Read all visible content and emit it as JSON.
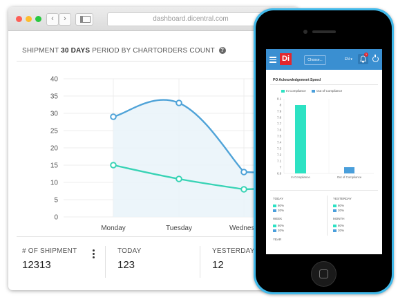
{
  "browser": {
    "url": "dashboard.dicentral.com"
  },
  "card": {
    "title_prefix": "SHIPMENT ",
    "title_bold": "30 DAYS",
    "title_suffix": " PERIOD BY CHARTORDERS COUNT",
    "help_glyph": "?"
  },
  "chart_data": {
    "type": "line",
    "categories": [
      "Monday",
      "Tuesday",
      "Wednesday"
    ],
    "visible_categories": [
      "Monday",
      "Tuesday",
      "Wednesd"
    ],
    "series": [
      {
        "values": [
          29,
          33,
          13
        ],
        "color": "#4fa3d8",
        "fill": true
      },
      {
        "values": [
          15,
          11,
          8
        ],
        "color": "#38d3b5",
        "fill": false
      }
    ],
    "yticks": [
      0,
      5,
      10,
      15,
      20,
      25,
      30,
      35,
      40
    ],
    "ylim": [
      0,
      40
    ],
    "grid": true
  },
  "stats": [
    {
      "label": "# OF SHIPMENT",
      "value": "12313"
    },
    {
      "label": "TODAY",
      "value": "123"
    },
    {
      "label": "YESTERDAY",
      "value": "12"
    }
  ],
  "phone": {
    "logo": "Di",
    "choose_label": "Choose...",
    "lang": "EN ▾",
    "bell_count": "1",
    "panel_title": "PO Acknowledgement Speed",
    "legend": [
      {
        "name": "In Compliance",
        "color": "#2de2c3"
      },
      {
        "name": "Out of Compliance",
        "color": "#4a9fdb"
      }
    ],
    "mini_chart": {
      "type": "bar",
      "categories": [
        "In Compliance",
        "Out of Compliance"
      ],
      "values": [
        8.0,
        7.0
      ],
      "colors": [
        "#2de2c3",
        "#4a9fdb"
      ],
      "yticks": [
        "8.1",
        "8",
        "7.9",
        "7.8",
        "7.7",
        "7.6",
        "7.5",
        "7.4",
        "7.3",
        "7.2",
        "7.1",
        "7",
        "6.9"
      ],
      "ylim": [
        6.9,
        8.1
      ]
    },
    "sections": {
      "today": {
        "label": "TODAY",
        "rows": [
          "80%",
          "20%"
        ]
      },
      "yesterday": {
        "label": "YESTERDAY",
        "rows": [
          "80%",
          "20%"
        ]
      },
      "week": {
        "label": "WEEK",
        "rows": [
          "80%",
          "20%"
        ]
      },
      "month": {
        "label": "MONTH",
        "rows": [
          "80%",
          "20%"
        ]
      },
      "year": {
        "label": "YEAR"
      }
    }
  }
}
